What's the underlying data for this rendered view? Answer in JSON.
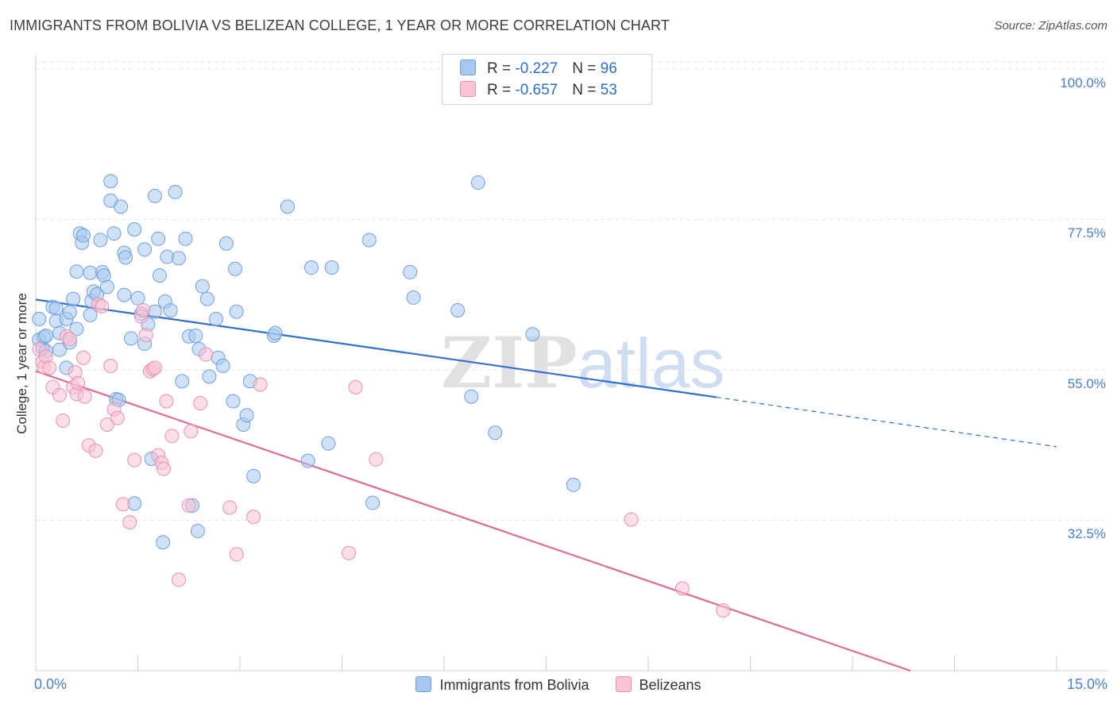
{
  "title": "IMMIGRANTS FROM BOLIVIA VS BELIZEAN COLLEGE, 1 YEAR OR MORE CORRELATION CHART",
  "source": "Source: ZipAtlas.com",
  "watermark": {
    "zip": "ZIP",
    "atlas": "atlas"
  },
  "legend": {
    "r_label": "R = ",
    "n_label": "N = ",
    "rows": [
      {
        "r": "-0.227",
        "n": "96",
        "color": "#a8c8f0",
        "border": "#6f9fdf"
      },
      {
        "r": "-0.657",
        "n": "53",
        "color": "#f8c3d3",
        "border": "#e890ad"
      }
    ]
  },
  "bottom_legend": [
    "Immigrants from Bolivia",
    "Belizeans"
  ],
  "chart_data": {
    "type": "scatter",
    "xlabel": "",
    "ylabel": "College, 1 year or more",
    "xlim": [
      0,
      15
    ],
    "ylim": [
      10,
      102
    ],
    "x_tick_labels": [
      {
        "v": 0,
        "label": "0.0%"
      },
      {
        "v": 15,
        "label": "15.0%"
      }
    ],
    "y_tick_labels": [
      {
        "v": 100,
        "label": "100.0%"
      },
      {
        "v": 77.5,
        "label": "77.5%"
      },
      {
        "v": 55,
        "label": "55.0%"
      },
      {
        "v": 32.5,
        "label": "32.5%"
      }
    ],
    "grid": true,
    "legend_position": "top-center",
    "series": [
      {
        "name": "Immigrants from Bolivia",
        "color": "#a8c8f0",
        "stroke": "#6f9fdf",
        "trend": {
          "x0": 0,
          "y0": 65.5,
          "x1": 10.0,
          "y1": 50.9,
          "dash_to_x": 15.0,
          "dash_y": 43.5,
          "color": "#2f6fcf"
        },
        "points": [
          [
            0.05,
            62.6
          ],
          [
            0.05,
            59.5
          ],
          [
            0.1,
            58.3
          ],
          [
            0.12,
            59.9
          ],
          [
            0.15,
            60.1
          ],
          [
            0.15,
            57.8
          ],
          [
            0.25,
            64.4
          ],
          [
            0.3,
            64.2
          ],
          [
            0.3,
            62.3
          ],
          [
            0.35,
            60.5
          ],
          [
            0.35,
            58.0
          ],
          [
            0.45,
            62.6
          ],
          [
            0.45,
            55.3
          ],
          [
            0.5,
            59.1
          ],
          [
            0.5,
            63.6
          ],
          [
            0.55,
            65.6
          ],
          [
            0.6,
            61.1
          ],
          [
            0.6,
            69.7
          ],
          [
            0.65,
            75.4
          ],
          [
            0.68,
            74.0
          ],
          [
            0.7,
            75.1
          ],
          [
            0.8,
            69.5
          ],
          [
            0.8,
            63.2
          ],
          [
            0.82,
            65.3
          ],
          [
            0.85,
            66.7
          ],
          [
            0.9,
            66.3
          ],
          [
            0.95,
            74.4
          ],
          [
            0.98,
            69.6
          ],
          [
            1.0,
            69.1
          ],
          [
            1.05,
            67.4
          ],
          [
            1.1,
            83.2
          ],
          [
            1.1,
            80.3
          ],
          [
            1.15,
            75.4
          ],
          [
            1.18,
            50.6
          ],
          [
            1.25,
            79.4
          ],
          [
            1.3,
            72.5
          ],
          [
            1.3,
            66.2
          ],
          [
            1.32,
            71.8
          ],
          [
            1.4,
            59.7
          ],
          [
            1.45,
            76.0
          ],
          [
            1.45,
            35.0
          ],
          [
            1.5,
            65.7
          ],
          [
            1.55,
            63.4
          ],
          [
            1.6,
            58.9
          ],
          [
            1.6,
            73.0
          ],
          [
            1.65,
            61.8
          ],
          [
            1.7,
            41.7
          ],
          [
            1.75,
            63.7
          ],
          [
            1.75,
            81.0
          ],
          [
            1.8,
            74.6
          ],
          [
            1.82,
            69.1
          ],
          [
            1.87,
            29.2
          ],
          [
            1.9,
            65.2
          ],
          [
            1.93,
            71.9
          ],
          [
            1.98,
            63.9
          ],
          [
            2.05,
            81.6
          ],
          [
            2.1,
            71.7
          ],
          [
            2.15,
            53.3
          ],
          [
            2.2,
            74.6
          ],
          [
            2.25,
            60.0
          ],
          [
            2.3,
            34.7
          ],
          [
            2.35,
            60.1
          ],
          [
            2.38,
            30.9
          ],
          [
            2.4,
            58.1
          ],
          [
            2.45,
            67.5
          ],
          [
            2.52,
            65.6
          ],
          [
            2.55,
            54.0
          ],
          [
            2.65,
            62.6
          ],
          [
            2.68,
            56.8
          ],
          [
            2.75,
            55.6
          ],
          [
            2.8,
            73.9
          ],
          [
            2.9,
            50.3
          ],
          [
            2.93,
            70.1
          ],
          [
            2.95,
            63.7
          ],
          [
            3.05,
            46.8
          ],
          [
            3.1,
            48.2
          ],
          [
            3.15,
            53.3
          ],
          [
            3.2,
            39.1
          ],
          [
            3.5,
            60.1
          ],
          [
            3.52,
            60.5
          ],
          [
            3.7,
            79.4
          ],
          [
            4.0,
            41.4
          ],
          [
            4.05,
            70.3
          ],
          [
            4.3,
            44.0
          ],
          [
            4.35,
            70.3
          ],
          [
            4.9,
            74.4
          ],
          [
            4.95,
            35.1
          ],
          [
            5.5,
            69.6
          ],
          [
            5.55,
            65.8
          ],
          [
            6.2,
            63.9
          ],
          [
            6.4,
            51.0
          ],
          [
            6.5,
            83.0
          ],
          [
            6.75,
            45.6
          ],
          [
            7.3,
            60.3
          ],
          [
            7.9,
            37.8
          ],
          [
            1.22,
            50.5
          ]
        ]
      },
      {
        "name": "Belizeans",
        "color": "#f8c3d3",
        "stroke": "#e890ad",
        "trend": {
          "x0": 0,
          "y0": 54.8,
          "x1": 12.85,
          "y1": 10.0,
          "color": "#e06a96"
        },
        "points": [
          [
            0.05,
            58.1
          ],
          [
            0.1,
            56.2
          ],
          [
            0.12,
            55.4
          ],
          [
            0.15,
            57.0
          ],
          [
            0.2,
            55.3
          ],
          [
            0.25,
            52.4
          ],
          [
            0.35,
            51.2
          ],
          [
            0.4,
            47.4
          ],
          [
            0.45,
            60.0
          ],
          [
            0.5,
            59.6
          ],
          [
            0.55,
            52.4
          ],
          [
            0.58,
            54.6
          ],
          [
            0.6,
            51.4
          ],
          [
            0.62,
            53.0
          ],
          [
            0.7,
            56.8
          ],
          [
            0.72,
            51.0
          ],
          [
            0.78,
            43.7
          ],
          [
            0.88,
            42.9
          ],
          [
            0.92,
            64.8
          ],
          [
            0.97,
            64.5
          ],
          [
            1.05,
            46.8
          ],
          [
            1.1,
            55.6
          ],
          [
            1.15,
            49.1
          ],
          [
            1.2,
            47.8
          ],
          [
            1.28,
            34.9
          ],
          [
            1.38,
            32.2
          ],
          [
            1.45,
            41.5
          ],
          [
            1.55,
            63.0
          ],
          [
            1.58,
            63.9
          ],
          [
            1.62,
            60.2
          ],
          [
            1.68,
            54.8
          ],
          [
            1.72,
            55.1
          ],
          [
            1.75,
            55.3
          ],
          [
            1.8,
            42.2
          ],
          [
            1.85,
            41.1
          ],
          [
            1.88,
            40.2
          ],
          [
            1.92,
            50.3
          ],
          [
            2.0,
            45.1
          ],
          [
            2.1,
            23.6
          ],
          [
            2.25,
            34.7
          ],
          [
            2.28,
            45.8
          ],
          [
            2.42,
            50.0
          ],
          [
            2.5,
            57.3
          ],
          [
            2.85,
            34.4
          ],
          [
            2.95,
            27.4
          ],
          [
            3.2,
            33.0
          ],
          [
            3.3,
            52.8
          ],
          [
            4.6,
            27.6
          ],
          [
            4.7,
            52.4
          ],
          [
            5.0,
            41.6
          ],
          [
            8.75,
            32.6
          ],
          [
            9.5,
            22.3
          ],
          [
            10.1,
            19.0
          ]
        ]
      }
    ]
  }
}
